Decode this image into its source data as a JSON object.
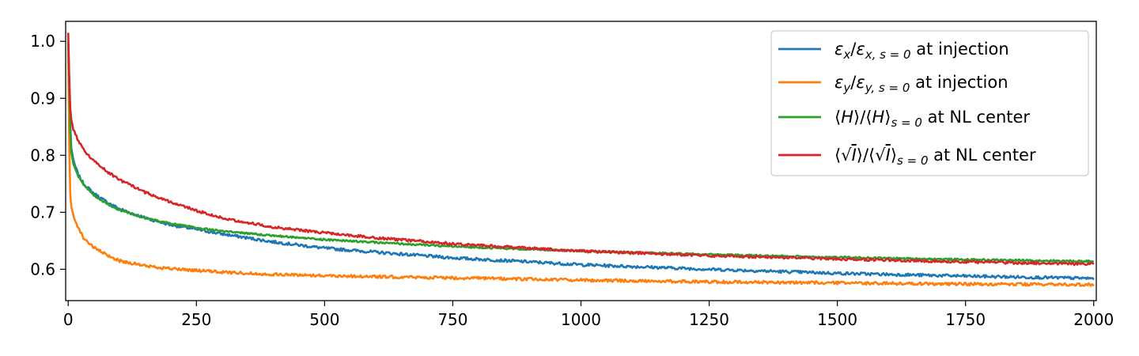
{
  "chart_data": {
    "type": "line",
    "title": "",
    "xlabel": "",
    "ylabel": "",
    "xlim": [
      -5,
      2005
    ],
    "ylim": [
      0.545,
      1.035
    ],
    "xticks": [
      0,
      250,
      500,
      750,
      1000,
      1250,
      1500,
      1750,
      2000
    ],
    "yticks": [
      0.6,
      0.7,
      0.8,
      0.9,
      1.0
    ],
    "xtick_labels": [
      "0",
      "250",
      "500",
      "750",
      "1000",
      "1250",
      "1500",
      "1750",
      "2000"
    ],
    "ytick_labels": [
      "0.6",
      "0.7",
      "0.8",
      "0.9",
      "1.0"
    ],
    "grid": false,
    "legend_position": "top-right",
    "series": [
      {
        "name_parts": [
          {
            "t": "ε",
            "s": "normal",
            "i": true
          },
          {
            "t": "x",
            "s": "sub",
            "i": true
          },
          {
            "t": "/",
            "s": "normal",
            "i": false
          },
          {
            "t": "ε",
            "s": "normal",
            "i": true
          },
          {
            "t": "x, s = 0",
            "s": "sub",
            "i": true
          },
          {
            "t": " at injection",
            "s": "normal",
            "i": false
          }
        ],
        "color": "#1f77b4",
        "noise": 0.0025,
        "x": [
          0,
          5,
          10,
          20,
          30,
          50,
          75,
          100,
          150,
          200,
          250,
          300,
          400,
          500,
          600,
          750,
          900,
          1000,
          1250,
          1500,
          1750,
          2000
        ],
        "y": [
          1.0,
          0.82,
          0.79,
          0.765,
          0.75,
          0.733,
          0.718,
          0.706,
          0.69,
          0.678,
          0.67,
          0.662,
          0.648,
          0.637,
          0.63,
          0.62,
          0.613,
          0.608,
          0.6,
          0.593,
          0.588,
          0.584
        ]
      },
      {
        "name_parts": [
          {
            "t": "ε",
            "s": "normal",
            "i": true
          },
          {
            "t": "y",
            "s": "sub",
            "i": true
          },
          {
            "t": "/",
            "s": "normal",
            "i": false
          },
          {
            "t": "ε",
            "s": "normal",
            "i": true
          },
          {
            "t": "y, s = 0",
            "s": "sub",
            "i": true
          },
          {
            "t": " at injection",
            "s": "normal",
            "i": false
          }
        ],
        "color": "#ff7f0e",
        "noise": 0.0025,
        "x": [
          0,
          3,
          6,
          10,
          20,
          30,
          50,
          75,
          100,
          150,
          200,
          250,
          300,
          400,
          500,
          600,
          750,
          1000,
          1250,
          1500,
          1750,
          2000
        ],
        "y": [
          0.98,
          0.74,
          0.71,
          0.695,
          0.672,
          0.655,
          0.638,
          0.625,
          0.615,
          0.606,
          0.601,
          0.598,
          0.595,
          0.591,
          0.589,
          0.587,
          0.585,
          0.581,
          0.578,
          0.576,
          0.574,
          0.573
        ]
      },
      {
        "name_parts": [
          {
            "t": "⟨",
            "s": "normal",
            "i": false
          },
          {
            "t": "H",
            "s": "normal",
            "i": true
          },
          {
            "t": "⟩/⟨",
            "s": "normal",
            "i": false
          },
          {
            "t": "H",
            "s": "normal",
            "i": true
          },
          {
            "t": "⟩",
            "s": "normal",
            "i": false
          },
          {
            "t": "s = 0",
            "s": "sub",
            "i": true
          },
          {
            "t": " at NL center",
            "s": "normal",
            "i": false
          }
        ],
        "color": "#2ca02c",
        "noise": 0.0015,
        "x": [
          0,
          5,
          10,
          20,
          30,
          50,
          75,
          100,
          150,
          200,
          250,
          300,
          400,
          500,
          600,
          750,
          900,
          1000,
          1250,
          1500,
          1750,
          2000
        ],
        "y": [
          1.0,
          0.81,
          0.785,
          0.762,
          0.748,
          0.73,
          0.715,
          0.704,
          0.69,
          0.68,
          0.673,
          0.667,
          0.659,
          0.652,
          0.647,
          0.64,
          0.635,
          0.632,
          0.626,
          0.621,
          0.617,
          0.614
        ]
      },
      {
        "name_parts": [
          {
            "t": "⟨√",
            "s": "normal",
            "i": false
          },
          {
            "t": "I",
            "s": "over",
            "i": true
          },
          {
            "t": "⟩/⟨√",
            "s": "normal",
            "i": false
          },
          {
            "t": "I",
            "s": "over",
            "i": true
          },
          {
            "t": "⟩",
            "s": "normal",
            "i": false
          },
          {
            "t": "s = 0",
            "s": "sub",
            "i": true
          },
          {
            "t": " at NL center",
            "s": "normal",
            "i": false
          }
        ],
        "color": "#d62728",
        "noise": 0.0022,
        "x": [
          0,
          3,
          5,
          10,
          20,
          30,
          50,
          75,
          100,
          150,
          200,
          250,
          300,
          400,
          500,
          600,
          750,
          900,
          1000,
          1250,
          1500,
          1750,
          2000
        ],
        "y": [
          1.015,
          0.9,
          0.865,
          0.845,
          0.825,
          0.81,
          0.79,
          0.772,
          0.757,
          0.735,
          0.718,
          0.703,
          0.69,
          0.674,
          0.664,
          0.655,
          0.645,
          0.637,
          0.632,
          0.624,
          0.618,
          0.613,
          0.609
        ]
      }
    ]
  }
}
